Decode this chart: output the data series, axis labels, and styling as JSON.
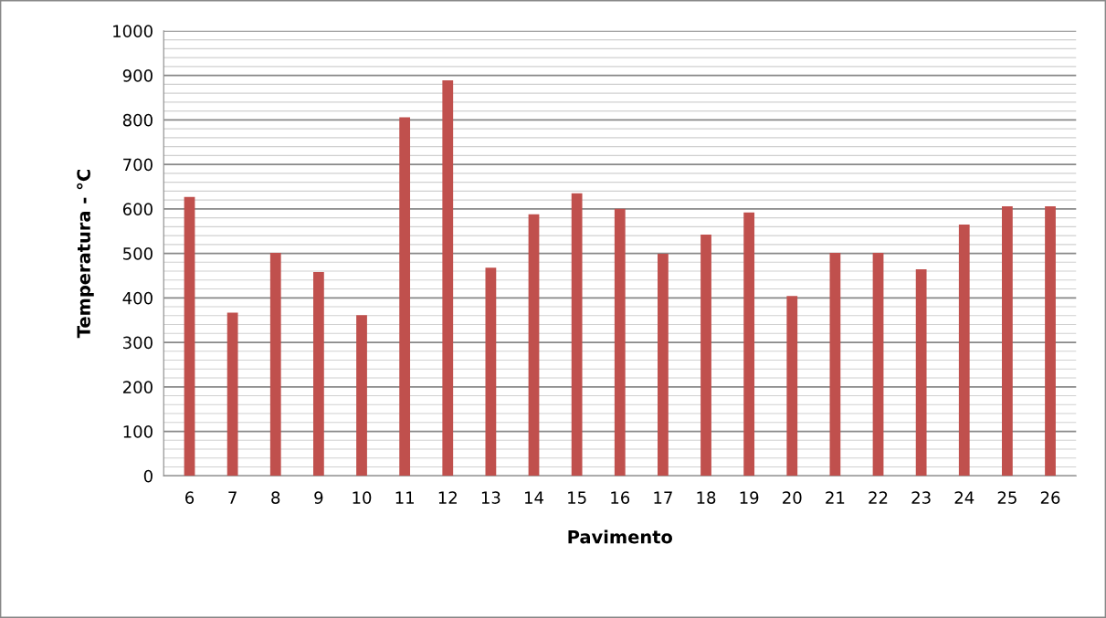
{
  "chart_data": {
    "type": "bar",
    "xlabel": "Pavimento",
    "ylabel": "Temperatura - °C",
    "categories": [
      "6",
      "7",
      "8",
      "9",
      "10",
      "11",
      "12",
      "13",
      "14",
      "15",
      "16",
      "17",
      "18",
      "19",
      "20",
      "21",
      "22",
      "23",
      "24",
      "25",
      "26"
    ],
    "values": [
      627,
      367,
      501,
      458,
      361,
      806,
      889,
      468,
      588,
      635,
      600,
      499,
      542,
      592,
      404,
      501,
      501,
      464,
      565,
      606,
      606
    ],
    "color": "#c0504d",
    "ylim": [
      0,
      1000
    ],
    "yticks": [
      0,
      {
        "value": 20,
        "label": null
      },
      {
        "value": 40,
        "label": null
      },
      {
        "value": 60,
        "label": null
      },
      {
        "value": 80,
        "label": null
      },
      100,
      {
        "value": 120,
        "label": null
      },
      {
        "value": 140,
        "label": null
      },
      {
        "value": 160,
        "label": null
      },
      {
        "value": 180,
        "label": null
      },
      200,
      {
        "value": 220,
        "label": null
      },
      {
        "value": 240,
        "label": null
      },
      {
        "value": 260,
        "label": null
      },
      {
        "value": 280,
        "label": null
      },
      300,
      {
        "value": 320,
        "label": null
      },
      {
        "value": 340,
        "label": null
      },
      {
        "value": 360,
        "label": null
      },
      {
        "value": 380,
        "label": null
      },
      400,
      {
        "value": 420,
        "label": null
      },
      {
        "value": 440,
        "label": null
      },
      {
        "value": 460,
        "label": null
      },
      {
        "value": 480,
        "label": null
      },
      500,
      {
        "value": 520,
        "label": null
      },
      {
        "value": 540,
        "label": null
      },
      {
        "value": 560,
        "label": null
      },
      {
        "value": 580,
        "label": null
      },
      600,
      {
        "value": 620,
        "label": null
      },
      {
        "value": 640,
        "label": null
      },
      {
        "value": 660,
        "label": null
      },
      {
        "value": 680,
        "label": null
      },
      700,
      {
        "value": 720,
        "label": null
      },
      {
        "value": 740,
        "label": null
      },
      {
        "value": 760,
        "label": null
      },
      {
        "value": 780,
        "label": null
      },
      800,
      {
        "value": 820,
        "label": null
      },
      {
        "value": 840,
        "label": null
      },
      {
        "value": 860,
        "label": null
      },
      {
        "value": 880,
        "label": null
      },
      900,
      {
        "value": 920,
        "label": null
      },
      {
        "value": 940,
        "label": null
      },
      {
        "value": 960,
        "label": null
      },
      {
        "value": 980,
        "label": null
      },
      1000
    ],
    "grid": "y",
    "legend": false
  }
}
